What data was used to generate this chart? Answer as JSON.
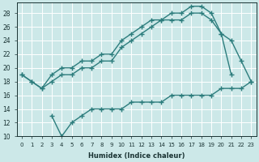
{
  "xlabel": "Humidex (Indice chaleur)",
  "bg_color": "#cce8e8",
  "grid_color": "#ffffff",
  "line_color": "#2d7d7d",
  "xlim": [
    -0.5,
    23.5
  ],
  "ylim": [
    10,
    29.5
  ],
  "xticks": [
    0,
    1,
    2,
    3,
    4,
    5,
    6,
    7,
    8,
    9,
    10,
    11,
    12,
    13,
    14,
    15,
    16,
    17,
    18,
    19,
    20,
    21,
    22,
    23
  ],
  "yticks": [
    10,
    12,
    14,
    16,
    18,
    20,
    22,
    24,
    26,
    28
  ],
  "series1_x": [
    0,
    1,
    2,
    3,
    4,
    5,
    6,
    7,
    8,
    9,
    10,
    11,
    12,
    13,
    14,
    15,
    16,
    17,
    18,
    19,
    20,
    21
  ],
  "series1_y": [
    19,
    18,
    17,
    19,
    20,
    20,
    21,
    21,
    22,
    22,
    24,
    25,
    26,
    27,
    27,
    28,
    28,
    29,
    29,
    28,
    25,
    19
  ],
  "series2_x": [
    0,
    1,
    2,
    3,
    4,
    5,
    6,
    7,
    8,
    9,
    10,
    11,
    12,
    13,
    14,
    15,
    16,
    17,
    18,
    19,
    20,
    21,
    22,
    23
  ],
  "series2_y": [
    19,
    18,
    17,
    18,
    19,
    19,
    20,
    20,
    21,
    21,
    23,
    24,
    25,
    26,
    27,
    27,
    27,
    28,
    28,
    27,
    25,
    24,
    21,
    18
  ],
  "series3_x": [
    3,
    4,
    5,
    6,
    7,
    8,
    9,
    10,
    11,
    12,
    13,
    14,
    15,
    16,
    17,
    18,
    19,
    20,
    21,
    22,
    23
  ],
  "series3_y": [
    13,
    10,
    12,
    13,
    14,
    14,
    14,
    14,
    15,
    15,
    15,
    15,
    16,
    16,
    16,
    16,
    16,
    17,
    17,
    17,
    18
  ]
}
